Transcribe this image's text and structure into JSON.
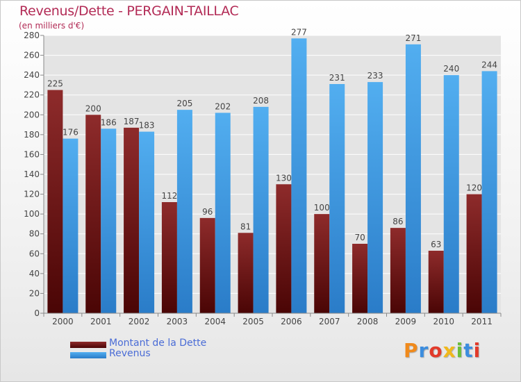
{
  "chart_data": {
    "type": "bar",
    "title": "Revenus/Dette - PERGAIN-TAILLAC",
    "subtitle": "(en milliers d'€)",
    "categories": [
      "2000",
      "2001",
      "2002",
      "2003",
      "2004",
      "2005",
      "2006",
      "2007",
      "2008",
      "2009",
      "2010",
      "2011"
    ],
    "series": [
      {
        "name": "Montant de la Dette",
        "values": [
          225,
          200,
          187,
          112,
          96,
          81,
          130,
          100,
          70,
          86,
          63,
          120
        ],
        "color": "#8b1a1a"
      },
      {
        "name": "Revenus",
        "values": [
          176,
          186,
          183,
          205,
          202,
          208,
          277,
          231,
          233,
          271,
          240,
          244
        ],
        "color": "#4aa8e8"
      }
    ],
    "ylim": [
      0,
      280
    ],
    "yticks": [
      0,
      20,
      40,
      60,
      80,
      100,
      120,
      140,
      160,
      180,
      200,
      220,
      240,
      260,
      280
    ],
    "grid": true,
    "legend": "bottom-left"
  },
  "logo": {
    "text": "Proxiti",
    "letters": [
      {
        "ch": "P",
        "color": "#f08a1c"
      },
      {
        "ch": "r",
        "color": "#3c8dde"
      },
      {
        "ch": "o",
        "color": "#e23a2a"
      },
      {
        "ch": "x",
        "color": "#f0b81c"
      },
      {
        "ch": "i",
        "color": "#6cbe3a"
      },
      {
        "ch": "t",
        "color": "#3c8dde"
      },
      {
        "ch": "i",
        "color": "#e23a2a"
      }
    ]
  }
}
